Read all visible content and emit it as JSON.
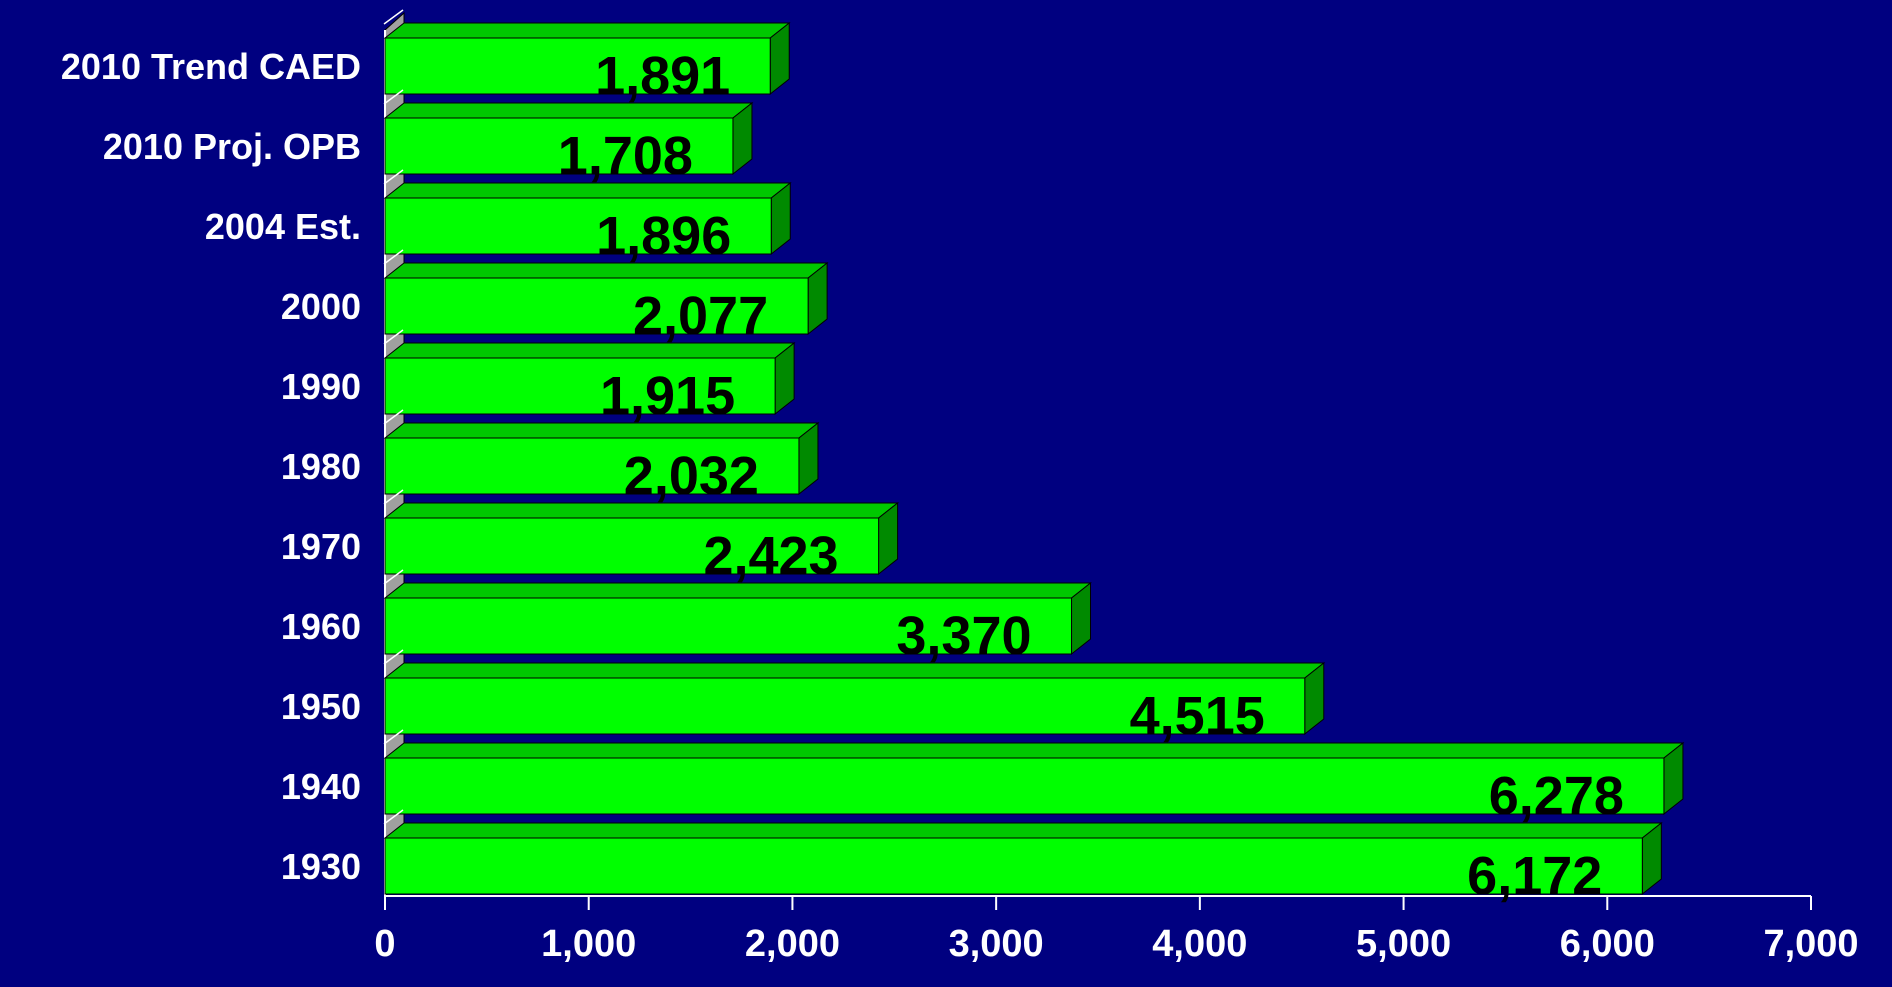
{
  "chart_data": {
    "type": "bar",
    "orientation": "horizontal",
    "style": "3d",
    "categories": [
      "2010 Trend CAED",
      "2010 Proj. OPB",
      "2004 Est.",
      "2000",
      "1990",
      "1980",
      "1970",
      "1960",
      "1950",
      "1940",
      "1930"
    ],
    "values": [
      1891,
      1708,
      1896,
      2077,
      1915,
      2032,
      2423,
      3370,
      4515,
      6278,
      6172
    ],
    "value_labels": [
      "1,891",
      "1,708",
      "1,896",
      "2,077",
      "1,915",
      "2,032",
      "2,423",
      "3,370",
      "4,515",
      "6,278",
      "6,172"
    ],
    "xlim": [
      0,
      7000
    ],
    "xticks": [
      0,
      1000,
      2000,
      3000,
      4000,
      5000,
      6000,
      7000
    ],
    "xtick_labels": [
      "0",
      "1,000",
      "2,000",
      "3,000",
      "4,000",
      "5,000",
      "6,000",
      "7,000"
    ],
    "title": "",
    "xlabel": "",
    "ylabel": "",
    "grid": false,
    "legend": false,
    "colors": {
      "background": "#000080",
      "bar_front": "#00FF00",
      "bar_top": "#00C800",
      "bar_side": "#008A00",
      "axis_wall": "#A0A0A0",
      "axis_text": "#FFFFFF",
      "value_label": "#000000"
    }
  }
}
